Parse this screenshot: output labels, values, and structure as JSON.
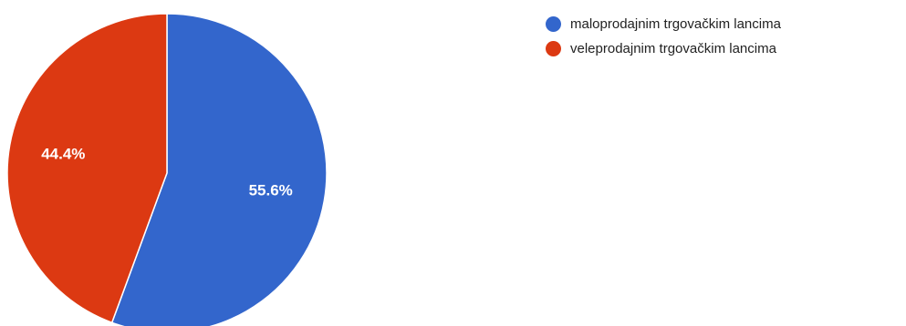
{
  "chart_data": {
    "type": "pie",
    "title": "",
    "categories": [
      "maloprodajnim trgovačkim lancima",
      "veleprodajnim trgovačkim lancima"
    ],
    "values": [
      55.6,
      44.4
    ],
    "value_labels": [
      "55.6%",
      "44.4%"
    ],
    "colors": [
      "#3366cc",
      "#dc3912"
    ],
    "legend_position": "top-right",
    "start_angle_deg": 90,
    "direction": "clockwise",
    "slice_border_color": "#ffffff"
  },
  "legend": {
    "items": [
      {
        "label": "maloprodajnim trgovačkim lancima",
        "color": "#3366cc"
      },
      {
        "label": "veleprodajnim trgovačkim lancima",
        "color": "#dc3912"
      }
    ]
  }
}
